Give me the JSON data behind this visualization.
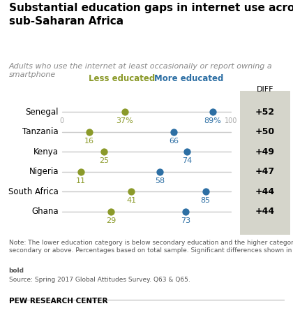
{
  "title": "Substantial education gaps in internet use across\nsub-Saharan Africa",
  "subtitle": "Adults who use the internet at least occasionally or report owning a\nsmartphone",
  "countries": [
    "Senegal",
    "Tanzania",
    "Kenya",
    "Nigeria",
    "South Africa",
    "Ghana"
  ],
  "less_educated": [
    37,
    16,
    25,
    11,
    41,
    29
  ],
  "more_educated": [
    89,
    66,
    74,
    58,
    85,
    73
  ],
  "diff": [
    "+52",
    "+50",
    "+49",
    "+47",
    "+44",
    "+44"
  ],
  "less_color": "#8B9A2A",
  "more_color": "#2D6FA4",
  "line_color": "#C8C8C8",
  "diff_bg": "#D5D5CB",
  "note1": "Note: The lower education category is below secondary education and the higher category is\nsecondary or above. Percentages based on total sample. Significant differences shown in",
  "note_bold": "bold",
  "note2": "Source: Spring 2017 Global Attitudes Survey. Q63 & Q65.",
  "source_label": "PEW RESEARCH CENTER",
  "xmin": 0,
  "xmax": 100,
  "legend_less": "Less educated",
  "legend_more": "More educated",
  "diff_label": "DIFF"
}
